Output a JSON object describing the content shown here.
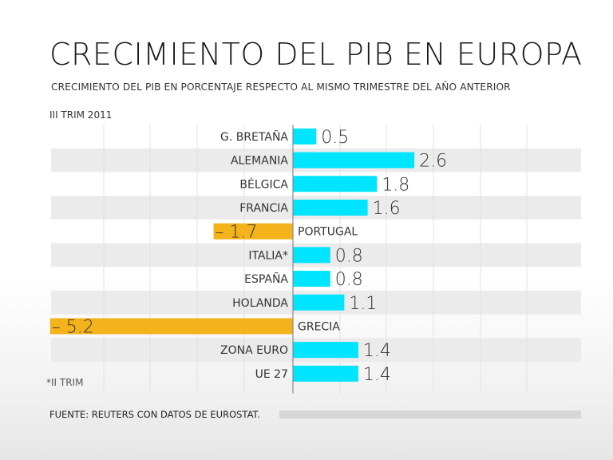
{
  "title": "CRECIMIENTO DEL PIB EN EUROPA",
  "subtitle": "CRECIMIENTO DEL PIB EN PORCENTAJE RESPECTO AL MISMO TRIMESTRE DEL AÑO ANTERIOR",
  "period": "III TRIM 2011",
  "footnote": "*II TRIM",
  "source": "FUENTE: REUTERS CON DATOS DE EUROSTAT.",
  "colors": {
    "positive": "#00e5ff",
    "negative": "#f4b21b",
    "stripe": "#ebebeb",
    "grid": "#e2e2e2"
  },
  "chart_data": {
    "type": "bar",
    "orientation": "horizontal",
    "title": "CRECIMIENTO DEL PIB EN EUROPA",
    "xlabel": "",
    "ylabel": "",
    "xlim": [
      -6,
      6
    ],
    "grid": true,
    "categories": [
      "G. BRETAÑA",
      "ALEMANIA",
      "BÉLGICA",
      "FRANCIA",
      "PORTUGAL",
      "ITALIA*",
      "ESPAÑA",
      "HOLANDA",
      "GRECIA",
      "ZONA EURO",
      "UE 27"
    ],
    "values": [
      0.5,
      2.6,
      1.8,
      1.6,
      -1.7,
      0.8,
      0.8,
      1.1,
      -5.2,
      1.4,
      1.4
    ],
    "value_labels": [
      "0.5",
      "2.6",
      "1.8",
      "1.6",
      "– 1.7",
      "0.8",
      "0.8",
      "1.1",
      "– 5.2",
      "1.4",
      "1.4"
    ]
  }
}
